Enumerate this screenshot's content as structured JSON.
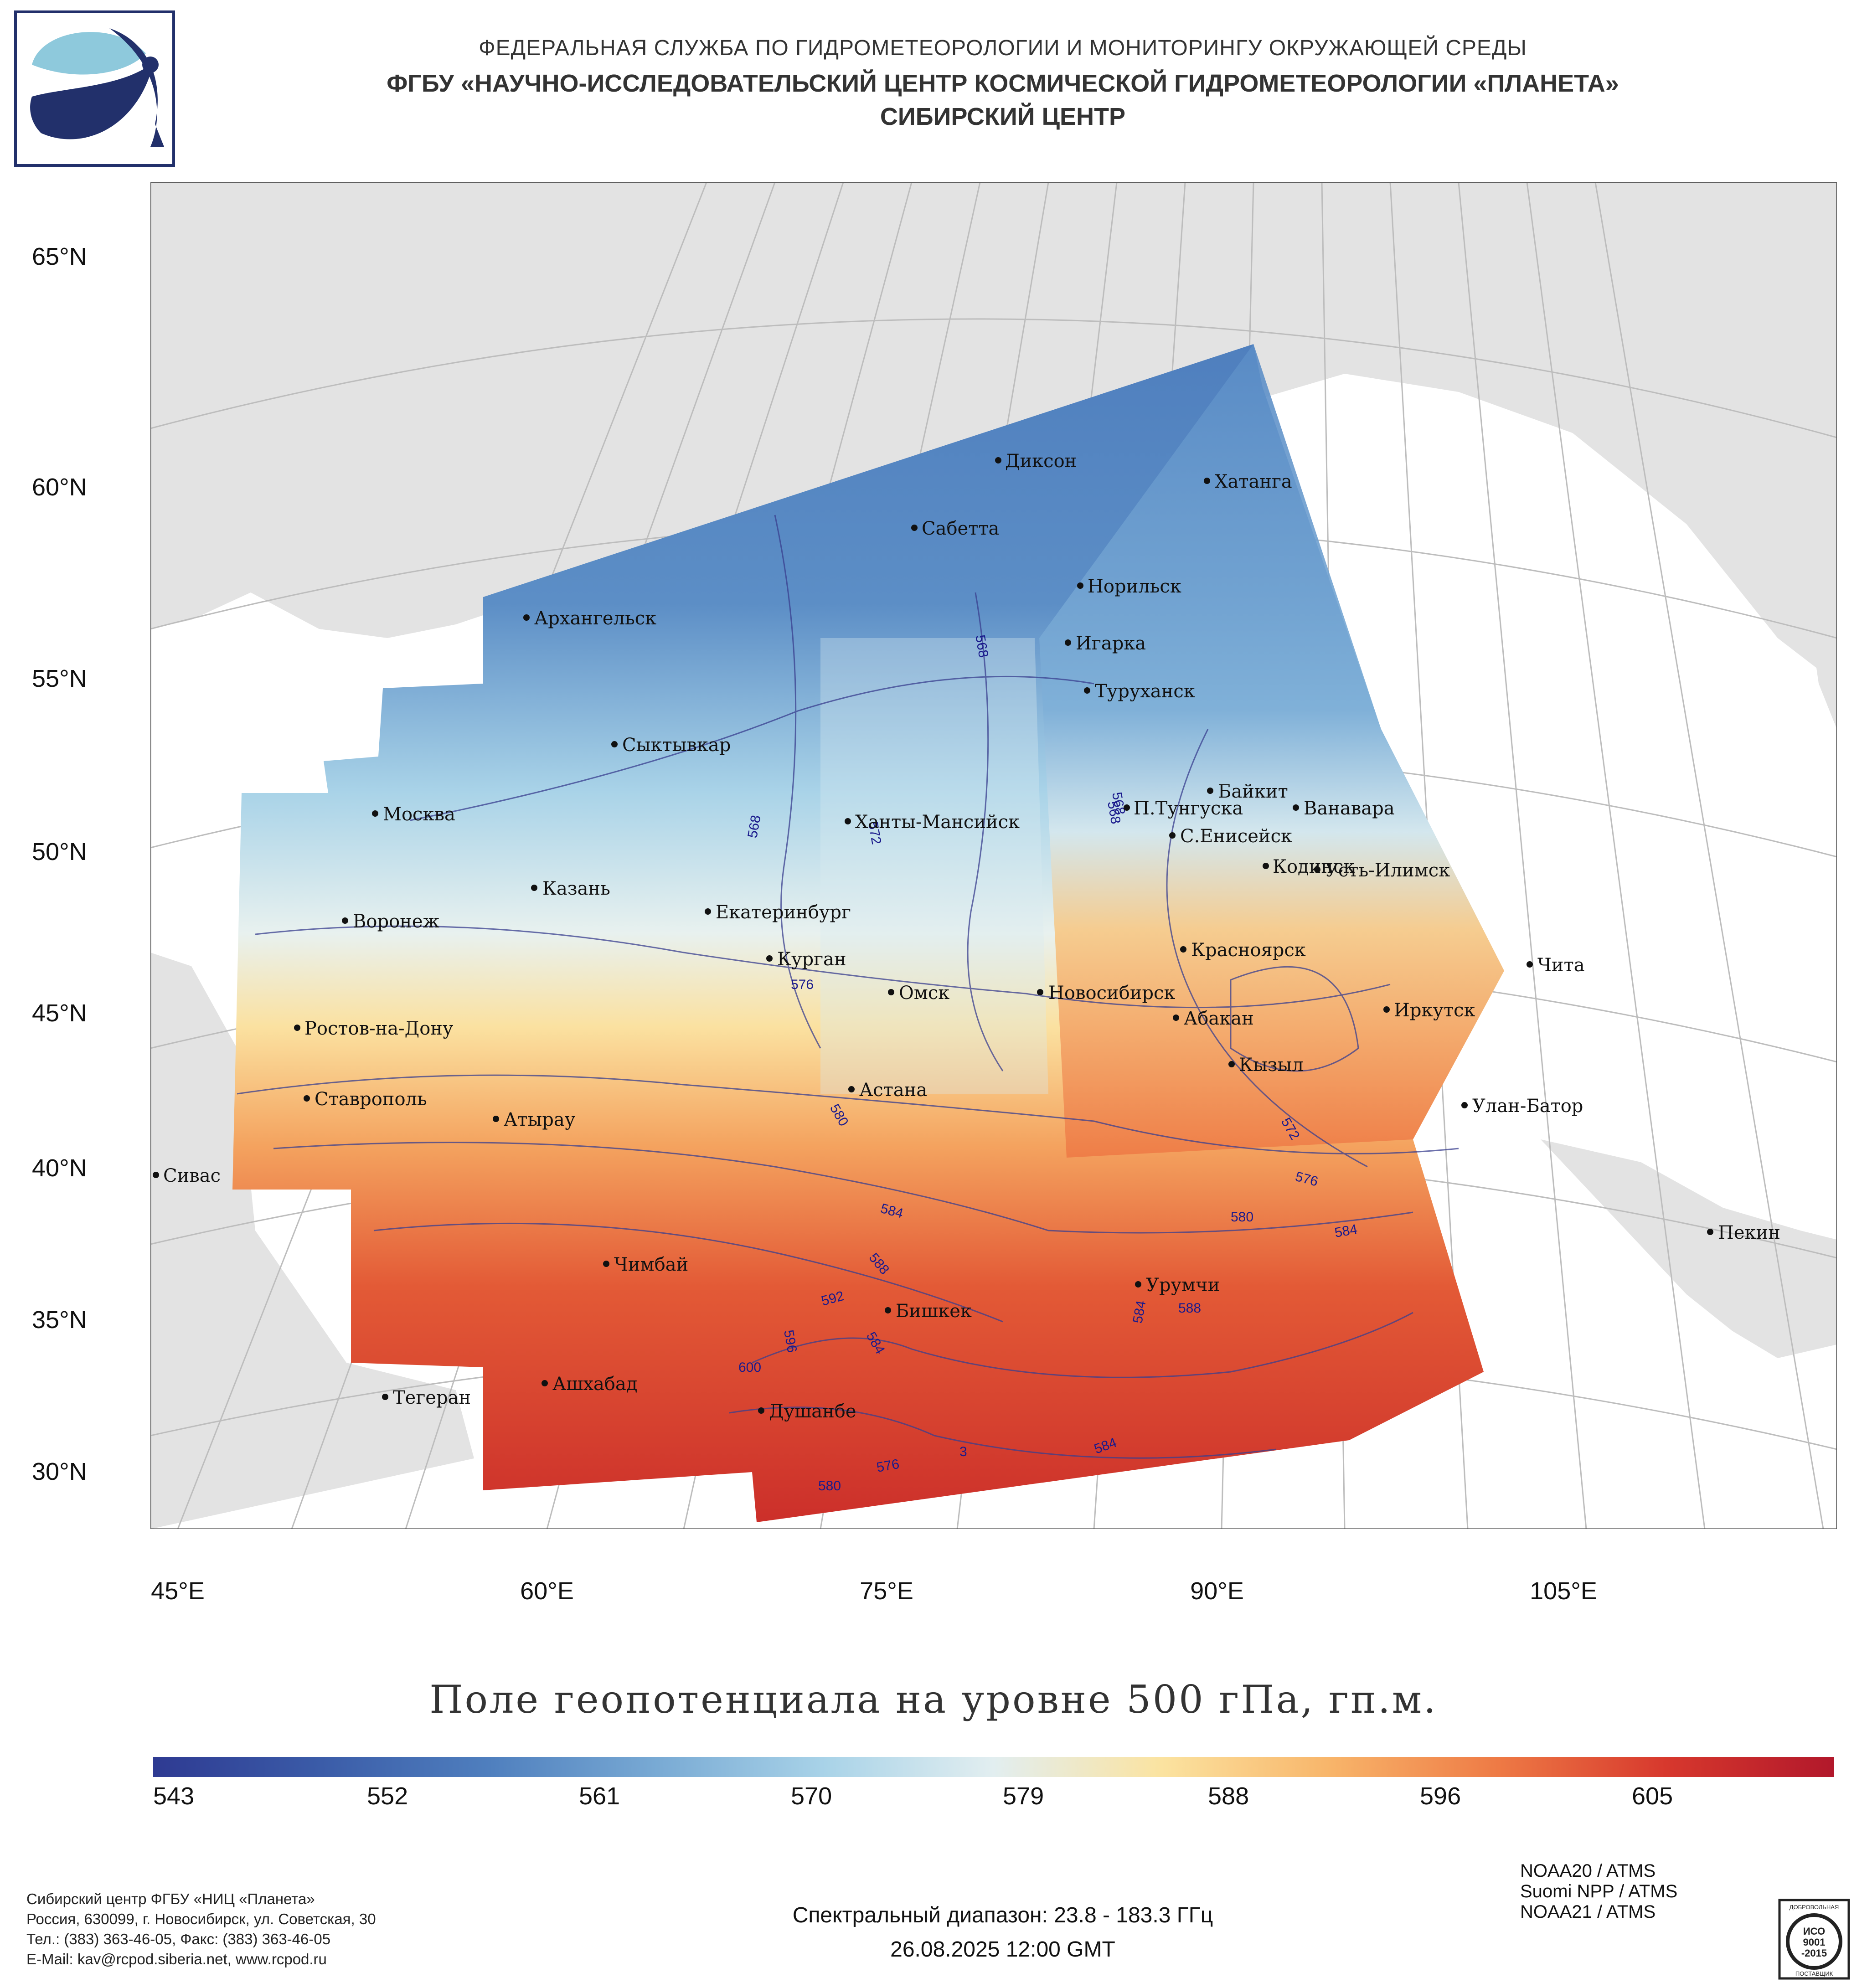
{
  "header": {
    "line1": "ФЕДЕРАЛЬНАЯ СЛУЖБА ПО ГИДРОМЕТЕОРОЛОГИИ И МОНИТОРИНГУ ОКРУЖАЮЩЕЙ СРЕДЫ",
    "line2": "ФГБУ «НАУЧНО-ИССЛЕДОВАТЕЛЬСКИЙ ЦЕНТР КОСМИЧЕСКОЙ ГИДРОМЕТЕОРОЛОГИИ «ПЛАНЕТА»",
    "line3": "СИБИРСКИЙ ЦЕНТР"
  },
  "map": {
    "lat_labels": [
      "65°N",
      "60°N",
      "55°N",
      "50°N",
      "45°N",
      "40°N",
      "35°N",
      "30°N"
    ],
    "lon_labels": [
      "45°E",
      "60°E",
      "75°E",
      "90°E",
      "105°E"
    ],
    "cities": [
      {
        "name": "Диксон"
      },
      {
        "name": "Хатанга"
      },
      {
        "name": "Сабетта"
      },
      {
        "name": "Норильск"
      },
      {
        "name": "Архангельск"
      },
      {
        "name": "Игарка"
      },
      {
        "name": "Туруханск"
      },
      {
        "name": "Сыктывкар"
      },
      {
        "name": "Байкит"
      },
      {
        "name": "П.Тунгуска"
      },
      {
        "name": "Ванавара"
      },
      {
        "name": "Москва"
      },
      {
        "name": "Ханты-Мансийск"
      },
      {
        "name": "С.Енисейск"
      },
      {
        "name": "Кодинск"
      },
      {
        "name": "Усть-Илимск"
      },
      {
        "name": "Казань"
      },
      {
        "name": "Екатеринбург"
      },
      {
        "name": "Воронеж"
      },
      {
        "name": "Красноярск"
      },
      {
        "name": "Курган"
      },
      {
        "name": "Чита"
      },
      {
        "name": "Омск"
      },
      {
        "name": "Новосибирск"
      },
      {
        "name": "Иркутск"
      },
      {
        "name": "Ростов-на-Дону"
      },
      {
        "name": "Абакан"
      },
      {
        "name": "Кызыл"
      },
      {
        "name": "Астана"
      },
      {
        "name": "Ставрополь"
      },
      {
        "name": "Улан-Батор"
      },
      {
        "name": "Атырау"
      },
      {
        "name": "Сивас"
      },
      {
        "name": "Пекин"
      },
      {
        "name": "Чимбай"
      },
      {
        "name": "Урумчи"
      },
      {
        "name": "Бишкек"
      },
      {
        "name": "Ашхабад"
      },
      {
        "name": "Тегеран"
      },
      {
        "name": "Душанбе"
      }
    ],
    "contour_labels": [
      "568",
      "572",
      "568",
      "568",
      "576",
      "580",
      "572",
      "576",
      "584",
      "580",
      "584",
      "588",
      "592",
      "596",
      "600",
      "584",
      "584",
      "588",
      "576",
      "580",
      "584",
      "568",
      "3"
    ]
  },
  "title": "Поле геопотенциала на уровне 500 гПа, гп.м.",
  "colorbar": {
    "ticks": [
      "543",
      "552",
      "561",
      "570",
      "579",
      "588",
      "596",
      "605"
    ],
    "colors": [
      "#2e3a92",
      "#3b5ca8",
      "#4f7fbe",
      "#79aad4",
      "#a9d3e8",
      "#e2eef0",
      "#fbe3a0",
      "#f8b56a",
      "#ee7a45",
      "#d7382d",
      "#b2182b"
    ]
  },
  "footer": {
    "org_lines": [
      "Сибирский центр ФГБУ «НИЦ «Планета»",
      "Россия, 630099, г. Новосибирск, ул. Советская, 30",
      "Тел.: (383) 363-46-05, Факс: (383) 363-46-05",
      "E-Mail: kav@rcpod.siberia.net, www.rcpod.ru"
    ],
    "spectral": "Спектральный диапазон: 23.8 - 183.3 ГГц",
    "datetime": "26.08.2025 12:00 GMT",
    "instruments": [
      "NOAA20 / ATMS",
      "Suomi NPP / ATMS",
      "NOAA21 / ATMS"
    ],
    "seal_text": [
      "ДОБРОВОЛЬНАЯ",
      "ИСО",
      "9001",
      "-2015",
      "ПОСТАВЩИК"
    ]
  }
}
